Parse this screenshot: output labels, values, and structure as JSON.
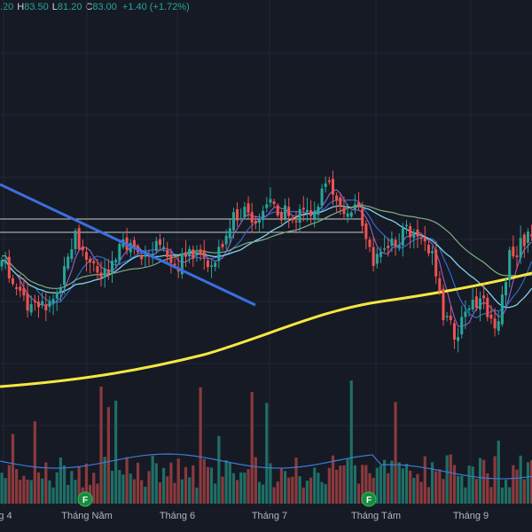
{
  "ohlc": {
    "open_value": ".20",
    "high_key": "H",
    "high_value": "83.50",
    "low_key": "L",
    "low_value": "81.20",
    "close_key": "C",
    "close_value": "83.00",
    "change": "+1.40 (+1.72%)"
  },
  "x_axis": {
    "labels": [
      "g 4",
      "Tháng Năm",
      "Tháng 6",
      "Tháng 7",
      "Tháng Tám",
      "Tháng 9"
    ]
  },
  "event_markers": [
    "F",
    "F"
  ],
  "colors": {
    "background": "#161a25",
    "up": "#26a69a",
    "down": "#ef5350",
    "ma_yellow": "#f5e642",
    "ma_cyan": "#7fd3e6",
    "ma_green": "#7fae84",
    "ma_blue": "#2f6fd8",
    "ma_purple": "#9c5fc8",
    "trendline": "#3b6fe0",
    "hlines": "#c9ccd3",
    "marker": "#1b8a3f"
  },
  "chart_data": {
    "type": "candlestick",
    "last_bar": {
      "high": 83.5,
      "low": 81.2,
      "close": 83.0,
      "change": 1.4,
      "change_pct": 1.72
    }
  }
}
